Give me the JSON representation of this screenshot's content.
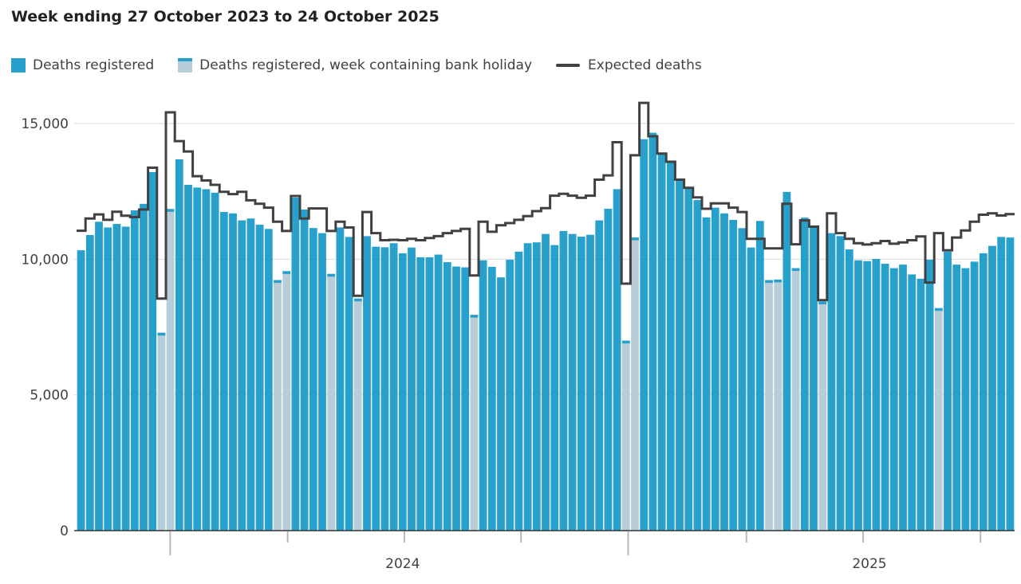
{
  "title": "Week ending 27 October 2023 to 24 October 2025",
  "legend": [
    {
      "label": "Deaths registered",
      "swatch": "blue-square"
    },
    {
      "label": "Deaths registered, week containing bank holiday",
      "swatch": "light-square-blue-cap"
    },
    {
      "label": "Expected deaths",
      "swatch": "dark-line"
    }
  ],
  "colors": {
    "bar": "#27a0cc",
    "bar_bank_holiday": "#b7ced8",
    "bar_bank_holiday_cap": "#27a0cc",
    "expected_line": "#414042",
    "gridline": "#d9d9d9",
    "axis_line": "#333333",
    "tick": "#b8b8b8",
    "text": "#414042",
    "title_text": "#222222"
  },
  "chart_data": {
    "type": "bar",
    "title": "Week ending 27 October 2023 to 24 October 2025",
    "x_description": "105 consecutive weeks, week ending 27 October 2023 to 24 October 2025",
    "weeks": 105,
    "ylim": [
      0,
      15500
    ],
    "grid": "horizontal-only",
    "legend_position": "top",
    "y_ticks": [
      {
        "value": 0,
        "label": "0"
      },
      {
        "value": 5000,
        "label": "5,000"
      },
      {
        "value": 10000,
        "label": "10,000"
      },
      {
        "value": 15000,
        "label": "15,000"
      }
    ],
    "x_ticks": [
      {
        "week_offset": 10.48,
        "length": "long"
      },
      {
        "week_offset": 23.63,
        "length": "short"
      },
      {
        "week_offset": 36.69,
        "length": "short"
      },
      {
        "week_offset": 49.75,
        "length": "short"
      },
      {
        "week_offset": 61.74,
        "length": "long"
      },
      {
        "week_offset": 74.98,
        "length": "short"
      },
      {
        "week_offset": 88.04,
        "length": "short"
      },
      {
        "week_offset": 101.18,
        "length": "short"
      }
    ],
    "x_year_labels": [
      {
        "text": "2024",
        "week_offset": 36.5
      },
      {
        "text": "2025",
        "week_offset": 88.75
      }
    ],
    "bank_holiday_week_indices": [
      9,
      10,
      22,
      23,
      28,
      31,
      44,
      61,
      62,
      77,
      78,
      80,
      83,
      96
    ],
    "series": [
      {
        "name": "Deaths registered",
        "render": "bar",
        "values": [
          10330,
          10890,
          11380,
          11170,
          11300,
          11200,
          11800,
          12040,
          13210,
          7290,
          11850,
          13680,
          12740,
          12640,
          12580,
          12450,
          11740,
          11690,
          11430,
          11500,
          11270,
          11115,
          9230,
          9560,
          12270,
          11830,
          11150,
          10960,
          9460,
          11170,
          10820,
          8550,
          10850,
          10460,
          10440,
          10590,
          10220,
          10430,
          10070,
          10070,
          10170,
          9890,
          9730,
          9700,
          7950,
          9960,
          9720,
          9330,
          9980,
          10280,
          10590,
          10620,
          10930,
          10520,
          11040,
          10930,
          10830,
          10900,
          11430,
          11860,
          12580,
          7000,
          10800,
          14420,
          14660,
          13890,
          13620,
          12930,
          12600,
          12180,
          11540,
          11900,
          11690,
          11450,
          11145,
          10430,
          11410,
          9230,
          9250,
          12480,
          9670,
          11530,
          11200,
          8440,
          10960,
          10850,
          10360,
          9960,
          9930,
          10010,
          9830,
          9670,
          9800,
          9440,
          9280,
          9980,
          8200,
          10280,
          9800,
          9670,
          9910,
          10220,
          10490,
          10820,
          10800
        ]
      },
      {
        "name": "Expected deaths",
        "render": "step-line",
        "values": [
          11050,
          11500,
          11650,
          11450,
          11750,
          11600,
          11550,
          11830,
          13370,
          8550,
          15410,
          14350,
          13970,
          13060,
          12900,
          12740,
          12480,
          12400,
          12480,
          12170,
          12040,
          11900,
          11380,
          11040,
          12330,
          11500,
          11870,
          11870,
          11040,
          11380,
          11170,
          8650,
          11740,
          10960,
          10700,
          10715,
          10700,
          10750,
          10700,
          10780,
          10850,
          10960,
          11040,
          11115,
          9400,
          11380,
          11010,
          11250,
          11330,
          11450,
          11590,
          11770,
          11880,
          12340,
          12410,
          12340,
          12260,
          12340,
          12930,
          13090,
          14310,
          9100,
          13830,
          15760,
          14530,
          13890,
          13590,
          12930,
          12630,
          12280,
          11860,
          12060,
          12060,
          11900,
          11740,
          10750,
          10750,
          10400,
          10400,
          12040,
          10550,
          11430,
          11200,
          8490,
          11690,
          10960,
          10750,
          10590,
          10540,
          10590,
          10670,
          10570,
          10620,
          10700,
          10840,
          9140,
          10960,
          10330,
          10800,
          11060,
          11380,
          11640,
          11690,
          11610,
          11660
        ]
      }
    ]
  }
}
